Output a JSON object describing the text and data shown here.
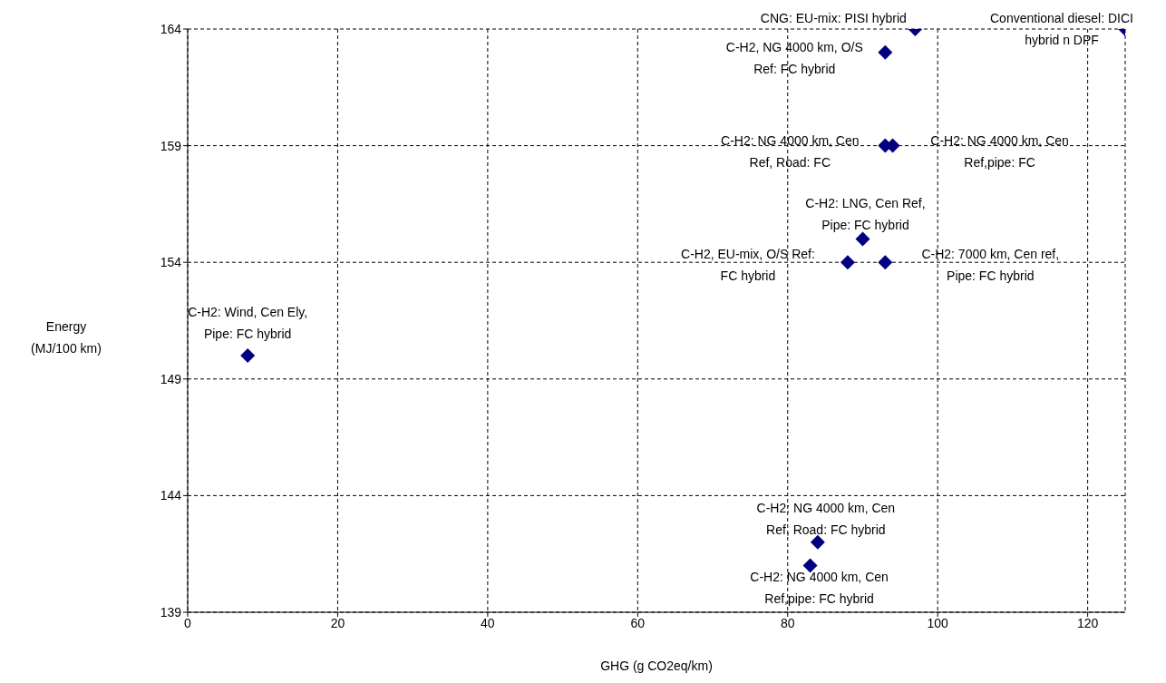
{
  "chart_data": {
    "type": "scatter",
    "xlabel": "GHG (g CO2eq/km)",
    "ylabel": "Energy\n(MJ/100 km)",
    "x": [
      8,
      97,
      125,
      93,
      93,
      94,
      90,
      88,
      93,
      84,
      83
    ],
    "values": [
      150,
      164,
      164,
      163,
      159,
      159,
      155,
      154,
      154,
      142,
      141
    ],
    "color": "#000080",
    "marker": "diamond",
    "grid": true,
    "xlim": [
      0,
      125
    ],
    "xticks": [
      0,
      20,
      40,
      60,
      80,
      100,
      120
    ],
    "ylim": [
      139,
      164
    ],
    "yticks": [
      139,
      144,
      149,
      154,
      159,
      164
    ],
    "annotations": [
      {
        "text": "C-H2: Wind, Cen Ely,\nPipe: FC hybrid",
        "x": 8,
        "y": 150
      },
      {
        "text": "CNG: EU-mix: PISI hybrid",
        "x": 97,
        "y": 164
      },
      {
        "text": "Conventional diesel: DICI\nhybrid n DPF",
        "x": 125,
        "y": 164
      },
      {
        "text": "C-H2, NG 4000 km, O/S\nRef: FC hybrid",
        "x": 93,
        "y": 163
      },
      {
        "text": "C-H2: NG 4000 km, Cen\nRef, Road: FC",
        "x": 93,
        "y": 159
      },
      {
        "text": "C-H2: NG 4000 km, Cen\nRef,pipe: FC",
        "x": 94,
        "y": 159
      },
      {
        "text": "C-H2: LNG, Cen Ref,\nPipe: FC hybrid",
        "x": 90,
        "y": 155
      },
      {
        "text": "C-H2, EU-mix, O/S Ref:\nFC hybrid",
        "x": 88,
        "y": 154
      },
      {
        "text": "C-H2: 7000 km, Cen ref,\nPipe: FC hybrid",
        "x": 93,
        "y": 154
      },
      {
        "text": "C-H2: NG 4000 km, Cen\nRef, Road: FC hybrid",
        "x": 84,
        "y": 142
      },
      {
        "text": "C-H2: NG 4000 km, Cen\nRef,pipe: FC hybrid",
        "x": 83,
        "y": 141
      }
    ]
  }
}
